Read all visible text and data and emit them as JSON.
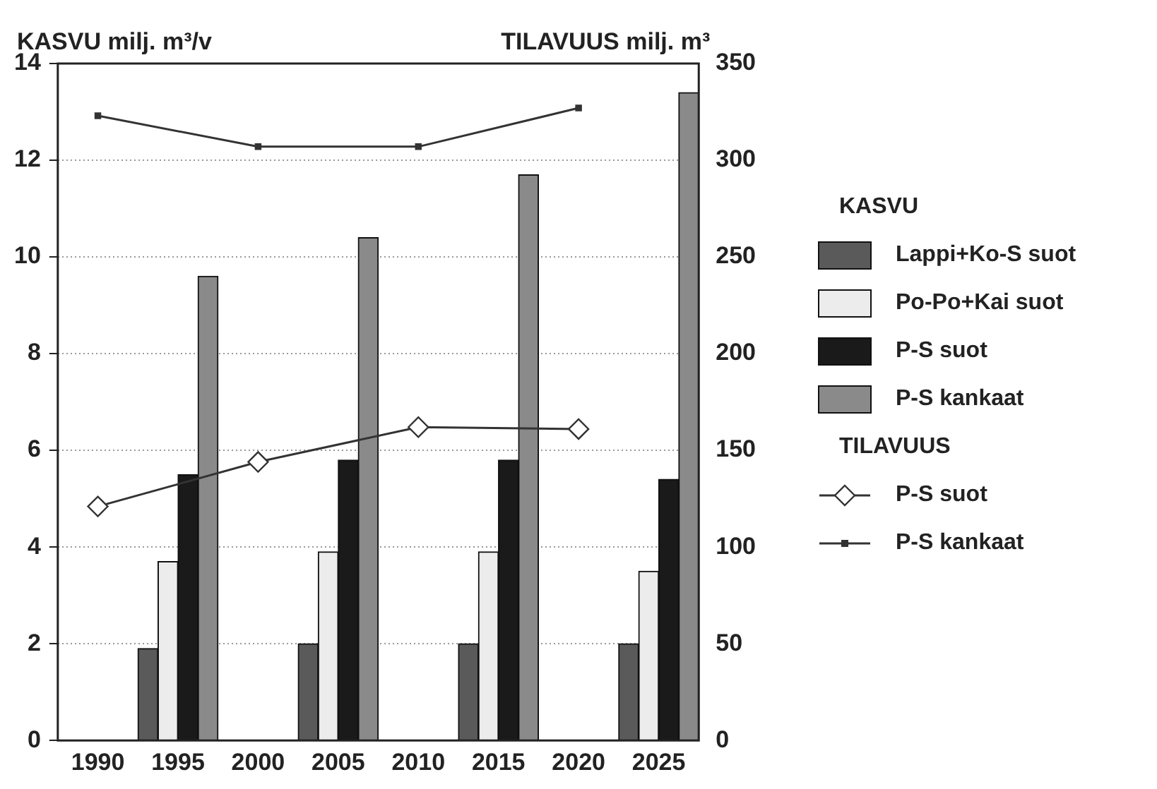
{
  "chart_data": {
    "type": "bar",
    "ylabel": "KASVU milj. m³/v",
    "y2label": "TILAVUUS milj. m³",
    "legend_title": "KASVU",
    "annotations": [
      "TILAVUUS"
    ],
    "categories": [
      "1990",
      "1995",
      "2000",
      "2005",
      "2010",
      "2015",
      "2020",
      "2025"
    ],
    "ylim": [
      0,
      14
    ],
    "yticks": [
      0,
      2,
      4,
      6,
      8,
      10,
      12,
      14
    ],
    "y2lim": [
      0,
      350
    ],
    "y2ticks": [
      0,
      50,
      100,
      150,
      200,
      250,
      300,
      350
    ],
    "grid": "y",
    "legend": "right",
    "series": [
      {
        "name": "Lappi+Ko-S suot",
        "color": "#5a5a5a",
        "values": [
          null,
          1.9,
          null,
          2.0,
          null,
          2.0,
          null,
          2.0
        ]
      },
      {
        "name": "Po-Po+Kai suot",
        "color": "#ececec",
        "values": [
          null,
          3.7,
          null,
          3.9,
          null,
          3.9,
          null,
          3.5
        ]
      },
      {
        "name": "P-S suot",
        "color": "#1a1a1a",
        "values": [
          null,
          5.5,
          null,
          5.8,
          null,
          5.8,
          null,
          5.4
        ]
      },
      {
        "name": "P-S kankaat",
        "color": "#8a8a8a",
        "values": [
          null,
          9.6,
          null,
          10.4,
          null,
          11.7,
          null,
          13.4
        ]
      },
      {
        "name": "P-S suot",
        "type": "line",
        "axis": "y2",
        "marker": "diamond",
        "color": "#333333",
        "values": [
          121,
          null,
          144,
          null,
          162,
          null,
          161,
          null
        ]
      },
      {
        "name": "P-S kankaat",
        "type": "line",
        "axis": "y2",
        "marker": "square",
        "color": "#333333",
        "values": [
          323,
          null,
          307,
          null,
          307,
          null,
          327,
          null
        ]
      }
    ]
  }
}
